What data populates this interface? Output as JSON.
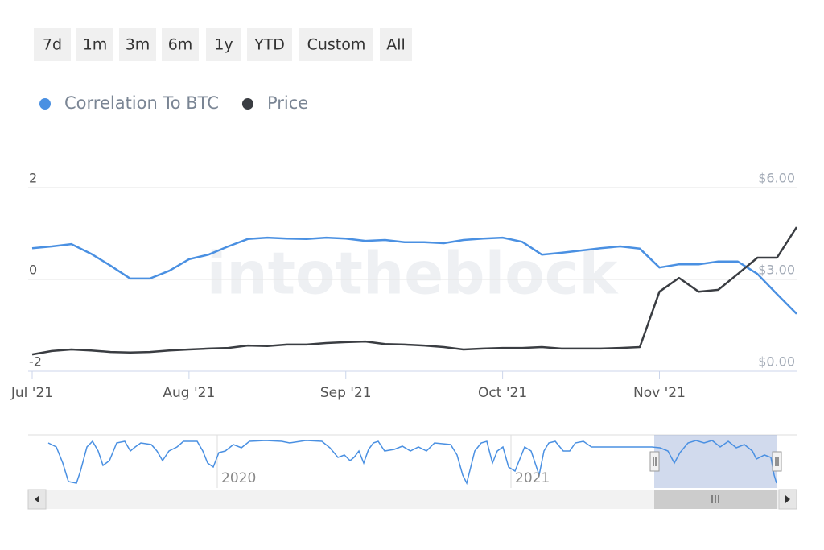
{
  "range_buttons": [
    "7d",
    "1m",
    "3m",
    "6m",
    "1y",
    "YTD",
    "Custom",
    "All"
  ],
  "watermark": "intotheblock",
  "navigator_labels": [
    "2020",
    "2021"
  ],
  "chart_data": {
    "type": "line",
    "categories": [
      "Jul '21",
      null,
      null,
      null,
      null,
      null,
      null,
      null,
      "Aug '21",
      null,
      null,
      null,
      null,
      null,
      null,
      null,
      "Sep '21",
      null,
      null,
      null,
      null,
      null,
      null,
      null,
      "Oct '21",
      null,
      null,
      null,
      null,
      null,
      null,
      null,
      "Nov '21",
      null,
      null,
      null,
      null,
      null,
      null,
      null
    ],
    "series": [
      {
        "name": "Correlation To BTC",
        "color": "#4a90e2",
        "values": [
          0.68,
          0.72,
          0.77,
          0.56,
          0.3,
          0.02,
          0.02,
          0.19,
          0.44,
          0.54,
          0.72,
          0.88,
          0.91,
          0.89,
          0.88,
          0.91,
          0.89,
          0.84,
          0.86,
          0.81,
          0.81,
          0.79,
          0.86,
          0.89,
          0.91,
          0.82,
          0.54,
          0.58,
          0.63,
          0.68,
          0.72,
          0.67,
          0.26,
          0.33,
          0.33,
          0.39,
          0.39,
          0.12,
          -0.32,
          -0.75
        ]
      },
      {
        "name": "Price",
        "color": "#3a3d42",
        "axis": "y2",
        "values": [
          0.55,
          0.66,
          0.71,
          0.68,
          0.63,
          0.61,
          0.63,
          0.68,
          0.71,
          0.74,
          0.76,
          0.84,
          0.82,
          0.87,
          0.87,
          0.92,
          0.95,
          0.97,
          0.89,
          0.87,
          0.84,
          0.79,
          0.71,
          0.74,
          0.76,
          0.76,
          0.79,
          0.74,
          0.74,
          0.74,
          0.76,
          0.79,
          2.6,
          3.05,
          2.6,
          2.66,
          3.18,
          3.71,
          3.71,
          4.71
        ]
      }
    ],
    "ylim": [
      -2,
      2
    ],
    "yticks": [
      -2,
      0,
      2
    ],
    "y2lim": [
      0,
      6
    ],
    "y2ticks": [
      {
        "value": 0,
        "label": "$0.00"
      },
      {
        "value": 3,
        "label": "$3.00"
      },
      {
        "value": 6,
        "label": "$6.00"
      }
    ],
    "grid": true
  }
}
